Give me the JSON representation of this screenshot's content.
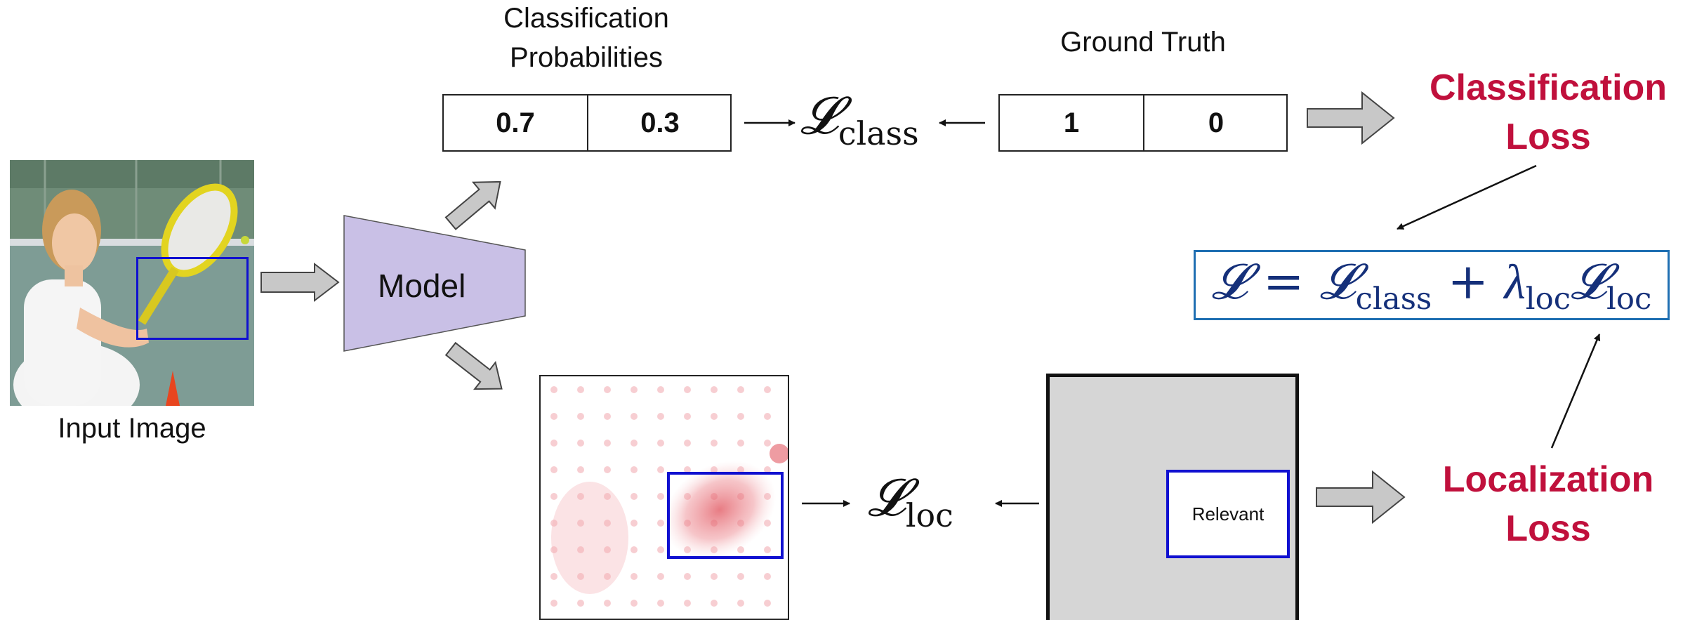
{
  "input_image": {
    "caption": "Input Image"
  },
  "model": {
    "label": "Model"
  },
  "classification": {
    "heading_line1": "Classification",
    "heading_line2": "Probabilities",
    "probs": [
      "0.7",
      "0.3"
    ],
    "loss_symbol": "𝓛",
    "loss_subscript": "class"
  },
  "ground_truth": {
    "heading": "Ground Truth",
    "values": [
      "1",
      "0"
    ]
  },
  "classification_loss": {
    "line1": "Classification",
    "line2": "Loss"
  },
  "localization_loss": {
    "line1": "Localization",
    "line2": "Loss"
  },
  "localization": {
    "loss_symbol": "𝓛",
    "loss_subscript": "loc"
  },
  "mask": {
    "region_label": "Relevant"
  },
  "total_loss": {
    "lhs": "𝓛",
    "equals": "=",
    "term1": "𝓛",
    "term1_sub": "class",
    "plus": "+",
    "lambda": "λ",
    "lambda_sub": "loc",
    "term2": "𝓛",
    "term2_sub": "loc"
  },
  "colors": {
    "accent_red": "#c0103c",
    "box_blue": "#1010d0",
    "formula_border": "#1f6fb2",
    "model_fill": "#c9c0e6",
    "arrow_fill": "#c8c8c8",
    "mask_gray": "#d6d6d6"
  }
}
